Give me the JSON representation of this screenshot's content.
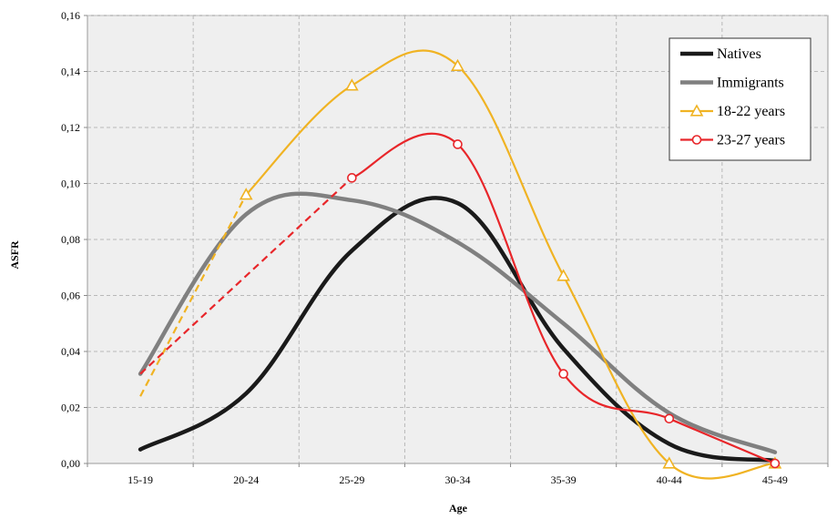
{
  "chart_data": {
    "type": "line",
    "xlabel": "Age",
    "ylabel": "ASFR",
    "categories": [
      "15-19",
      "20-24",
      "25-29",
      "30-34",
      "35-39",
      "40-44",
      "45-49"
    ],
    "ylim": [
      0,
      0.16
    ],
    "yticks": [
      0,
      0.02,
      0.04,
      0.06,
      0.08,
      0.1,
      0.12,
      0.14,
      0.16
    ],
    "ytick_labels": [
      "0,00",
      "0,02",
      "0,04",
      "0,06",
      "0,08",
      "0,10",
      "0,12",
      "0,14",
      "0,16"
    ],
    "grid": true,
    "legend_position": "top-right",
    "plot_background": "#efefef",
    "series": [
      {
        "name": "Natives",
        "color": "#1a1a1a",
        "marker": "none",
        "values": [
          0.005,
          0.025,
          0.076,
          0.093,
          0.041,
          0.007,
          0.001
        ]
      },
      {
        "name": "Immigrants",
        "color": "#808080",
        "marker": "none",
        "values": [
          0.032,
          0.089,
          0.094,
          0.079,
          0.05,
          0.018,
          0.004
        ]
      },
      {
        "name": "18-22 years",
        "color": "#f0b323",
        "marker": "triangle",
        "values": [
          0.024,
          0.096,
          0.135,
          0.142,
          0.067,
          0.0,
          0.0
        ],
        "dashed_first_segment": true
      },
      {
        "name": "23-27 years",
        "color": "#e8262a",
        "marker": "circle",
        "values": [
          0.032,
          null,
          0.102,
          0.114,
          0.032,
          0.016,
          0.0
        ],
        "dashed_first_segment": true
      }
    ]
  }
}
